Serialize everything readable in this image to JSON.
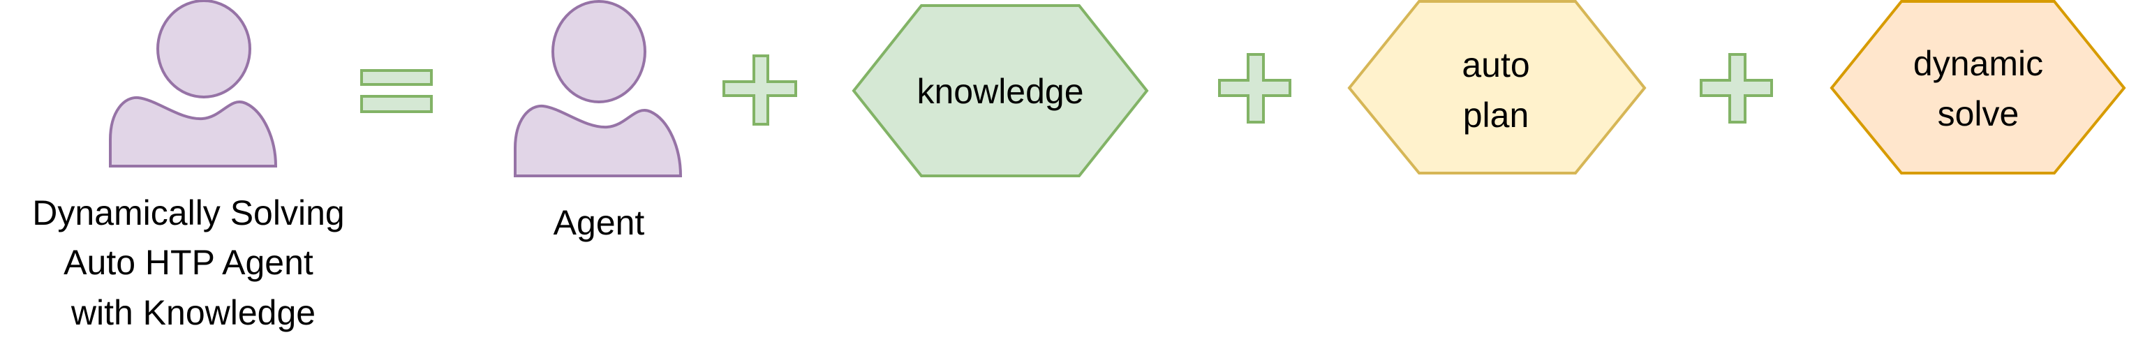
{
  "diagram": {
    "equation": {
      "result": {
        "icon": "person-icon",
        "caption_lines": [
          "Dynamically Solving",
          "Auto HTP Agent",
          "with Knowledge"
        ]
      },
      "equals_symbol": "equals-icon",
      "operands": [
        {
          "kind": "actor",
          "icon": "person-icon",
          "caption": "Agent"
        },
        {
          "kind": "hexagon",
          "lines": [
            "knowledge"
          ],
          "fill": "#d5e8d4",
          "stroke": "#82b366"
        },
        {
          "kind": "hexagon",
          "lines": [
            "auto",
            "plan"
          ],
          "fill": "#fff2cc",
          "stroke": "#d6b656"
        },
        {
          "kind": "hexagon",
          "lines": [
            "dynamic",
            "solve"
          ],
          "fill": "#ffe6cc",
          "stroke": "#d79b00"
        }
      ],
      "plus_symbol": "plus-icon"
    },
    "colors": {
      "actor_fill": "#e1d5e7",
      "actor_stroke": "#9673a6",
      "operator_fill": "#d5e8d4",
      "operator_stroke": "#82b366",
      "text": "#000000"
    }
  }
}
